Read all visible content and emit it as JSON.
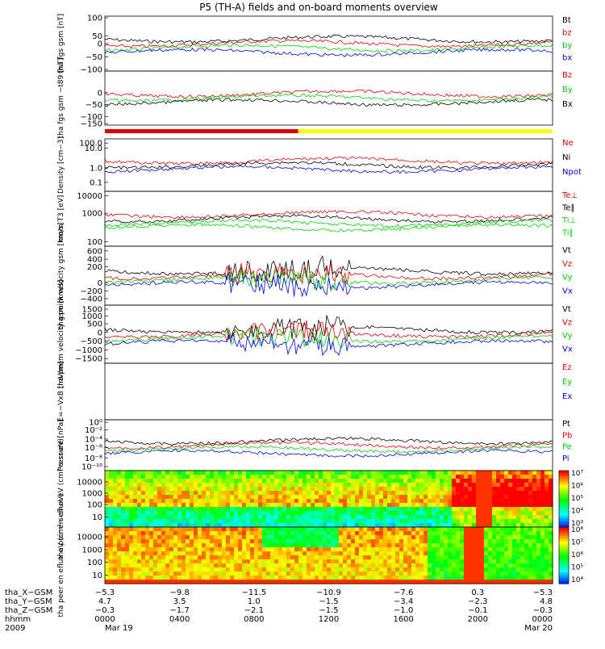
{
  "title": "P5 (TH-A) fields and on-board moments overview",
  "colors": {
    "black": "#000000",
    "red": "#e00000",
    "green": "#00d000",
    "blue": "#0000e0",
    "yellow": "#ffff00"
  },
  "mode_bar": {
    "segments": [
      {
        "color": "red",
        "from": 0,
        "to": 0.432
      },
      {
        "color": "yellow",
        "from": 0.432,
        "to": 1
      }
    ]
  },
  "chart_data": [
    {
      "id": "fgs",
      "type": "line",
      "ylabel": "tha fgs gsm [nT]",
      "yticks": [
        "100",
        "50",
        "0",
        "−50",
        "−100"
      ],
      "legend": [
        {
          "name": "Bt",
          "color": "black"
        },
        {
          "name": "bz",
          "color": "red"
        },
        {
          "name": "by",
          "color": "green"
        },
        {
          "name": "bx",
          "color": "blue"
        }
      ]
    },
    {
      "id": "fgs_t89",
      "type": "line",
      "ylabel": "tha fgs gsm −t89 [nT]",
      "yticks": [
        "0",
        "−50",
        "−100",
        "−150"
      ],
      "legend": [
        {
          "name": "Bz",
          "color": "red"
        },
        {
          "name": "By",
          "color": "green"
        },
        {
          "name": "Bx",
          "color": "black"
        }
      ]
    },
    {
      "id": "density",
      "type": "line",
      "ylabel": "Density [cm−3]",
      "yticks": [
        "100.0",
        "10.0",
        "1.0",
        "0.1"
      ],
      "legend": [
        {
          "name": "Ne",
          "color": "red"
        },
        {
          "name": "Ni",
          "color": "black"
        },
        {
          "name": "Npot",
          "color": "blue"
        }
      ]
    },
    {
      "id": "temp",
      "type": "line",
      "ylabel": "mom T3 [eV]",
      "yticks": [
        "10000",
        "1000",
        "100"
      ],
      "legend": [
        {
          "name": "Te⊥",
          "color": "red"
        },
        {
          "name": "Te∥",
          "color": "black"
        },
        {
          "name": "Ti⊥",
          "color": "green"
        },
        {
          "name": "Ti∥",
          "color": "green"
        }
      ]
    },
    {
      "id": "peim_v",
      "type": "line",
      "ylabel": "tha peim velocity gsm [km/s]",
      "yticks": [
        "600",
        "400",
        "200",
        "0",
        "−200",
        "−400"
      ],
      "legend": [
        {
          "name": "Vt",
          "color": "black"
        },
        {
          "name": "Vz",
          "color": "red"
        },
        {
          "name": "Vy",
          "color": "green"
        },
        {
          "name": "Vx",
          "color": "blue"
        }
      ]
    },
    {
      "id": "peem_v",
      "type": "line",
      "ylabel": "tha peem velocity gsm [km/s]",
      "yticks": [
        "1500",
        "1000",
        "500",
        "0",
        "−500",
        "−1000",
        "−1500"
      ],
      "legend": [
        {
          "name": "Vt",
          "color": "black"
        },
        {
          "name": "Vz",
          "color": "red"
        },
        {
          "name": "Vy",
          "color": "green"
        },
        {
          "name": "Vx",
          "color": "blue"
        }
      ]
    },
    {
      "id": "efield",
      "type": "line",
      "ylabel": "E=−VxB [mV/m]",
      "legend": [
        {
          "name": "Ez",
          "color": "red"
        },
        {
          "name": "Ey",
          "color": "green"
        },
        {
          "name": "Ex",
          "color": "blue"
        }
      ]
    },
    {
      "id": "pressure",
      "type": "line",
      "ylabel": "Pressure [nPa]",
      "yticks": [
        "10⁰",
        "10⁻²",
        "10⁻⁴",
        "10⁻⁶",
        "10⁻⁸",
        "10⁻¹⁰"
      ],
      "legend": [
        {
          "name": "Pt",
          "color": "black"
        },
        {
          "name": "Pb",
          "color": "red"
        },
        {
          "name": "Pe",
          "color": "green"
        },
        {
          "name": "Pi",
          "color": "blue"
        }
      ]
    },
    {
      "id": "peir",
      "type": "heatmap",
      "ylabel": "tha peir en eflux eV (cm²-s-sr-eV)",
      "yticks": [
        "10000",
        "1000",
        "100",
        "10"
      ],
      "colorbar": [
        "10⁷",
        "10⁶",
        "10⁵",
        "10⁴",
        "10³"
      ]
    },
    {
      "id": "peer",
      "type": "heatmap",
      "ylabel": "tha peer en eflux eV (cm²-s-sr-eV)",
      "yticks": [
        "10000",
        "1000",
        "100",
        "10"
      ],
      "colorbar": [
        "10⁸",
        "10⁷",
        "10⁶",
        "10⁵",
        "10⁴"
      ]
    }
  ],
  "xaxis": {
    "rows": [
      {
        "label": "tha_X−GSM",
        "values": [
          "−5.3",
          "−9.8",
          "−11.5",
          "−10.9",
          "−7.6",
          "0.3",
          "−5.3"
        ]
      },
      {
        "label": "tha_Y−GSM",
        "values": [
          "4.7",
          "3.5",
          "1.0",
          "−1.5",
          "−3.4",
          "−2.3",
          "4.8"
        ]
      },
      {
        "label": "tha_Z−GSM",
        "values": [
          "−0.3",
          "−1.7",
          "−2.1",
          "−1.5",
          "−1.0",
          "−0.1",
          "−0.3"
        ]
      },
      {
        "label": "hhmm",
        "values": [
          "0000",
          "0400",
          "0800",
          "1200",
          "1600",
          "2000",
          "0000"
        ]
      },
      {
        "label": "2009",
        "values": [
          "Mar 19",
          "",
          "",
          "",
          "",
          "",
          "Mar 20"
        ]
      }
    ]
  }
}
